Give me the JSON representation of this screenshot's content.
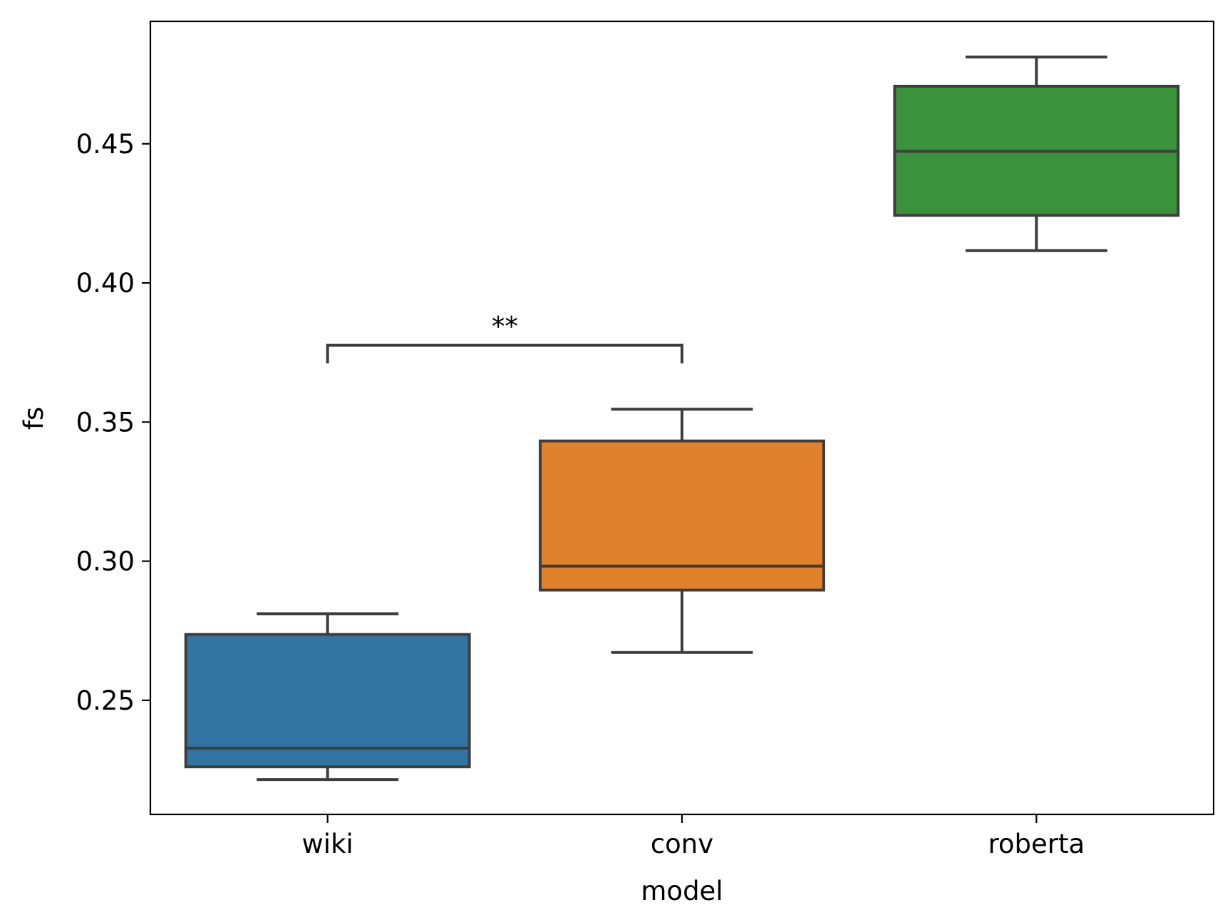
{
  "chart_data": {
    "type": "box",
    "xlabel": "model",
    "ylabel": "fs",
    "categories": [
      "wiki",
      "conv",
      "roberta"
    ],
    "ylim": [
      0.209,
      0.494
    ],
    "yticks": [
      "0.25",
      "0.30",
      "0.35",
      "0.40",
      "0.45"
    ],
    "grid": false,
    "boxes": [
      {
        "name": "wiki",
        "whisker_low": 0.2215,
        "q1": 0.2261,
        "median": 0.2328,
        "q3": 0.2737,
        "whisker_high": 0.2811,
        "color": "#3274a1"
      },
      {
        "name": "conv",
        "whisker_low": 0.2672,
        "q1": 0.2896,
        "median": 0.2982,
        "q3": 0.3432,
        "whisker_high": 0.3546,
        "color": "#e1812c"
      },
      {
        "name": "roberta",
        "whisker_low": 0.4116,
        "q1": 0.4243,
        "median": 0.4473,
        "q3": 0.4707,
        "whisker_high": 0.4812,
        "color": "#3a923a"
      }
    ],
    "annotations": [
      {
        "text": "**",
        "from": "wiki",
        "to": "conv",
        "y": 0.3776,
        "y_drop": 0.3711
      }
    ]
  }
}
